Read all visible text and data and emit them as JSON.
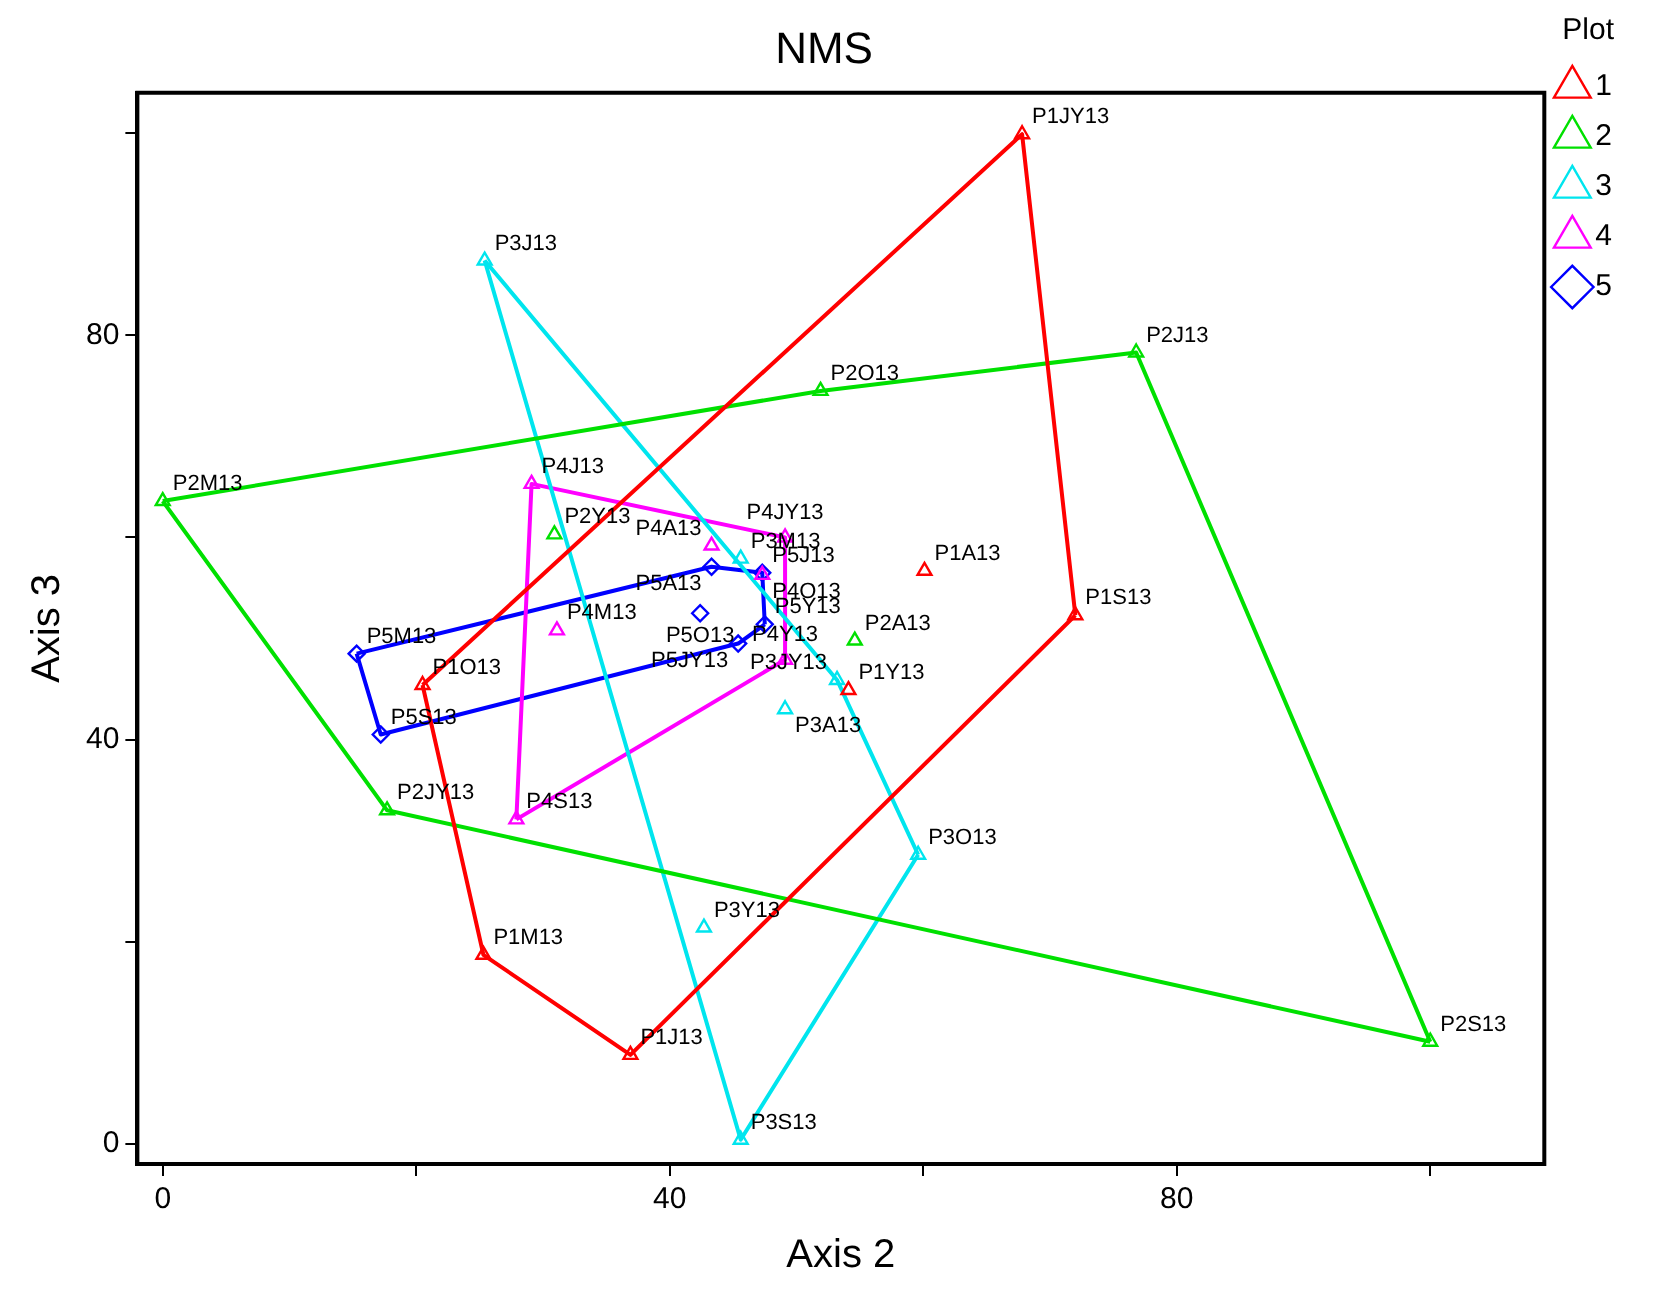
{
  "chart_data": {
    "type": "scatter",
    "title": "NMS",
    "xlabel": "Axis 2",
    "ylabel": "Axis 3",
    "legend_title": "Plot",
    "legend": "top right",
    "grid": false,
    "xlim": [
      -2,
      109
    ],
    "ylim": [
      -2,
      104
    ],
    "xticks": [
      0,
      {
        "value": 20,
        "label": null
      },
      40,
      {
        "value": 60,
        "label": null
      },
      80,
      {
        "value": 100,
        "label": null
      }
    ],
    "yticks": [
      0,
      {
        "value": 20,
        "label": null
      },
      40,
      {
        "value": 60,
        "label": null
      },
      80,
      {
        "value": 100,
        "label": null
      }
    ],
    "series": [
      {
        "name": "1",
        "type": "scatter",
        "color": "#ff0000",
        "marker": "triangle",
        "x": [
          67.8,
          72.0,
          60.1,
          54.1,
          20.5,
          25.3,
          36.9
        ],
        "values": [
          99.9,
          52.3,
          56.7,
          44.9,
          45.4,
          18.7,
          8.8
        ]
      },
      {
        "name": "2",
        "type": "scatter",
        "color": "#00e000",
        "marker": "triangle",
        "x": [
          0,
          51.9,
          76.8,
          100,
          17.7,
          30.9,
          54.6
        ],
        "values": [
          63.6,
          74.5,
          78.3,
          10.1,
          33.0,
          60.3,
          49.8
        ]
      },
      {
        "name": "3",
        "type": "scatter",
        "color": "#00e5ee",
        "marker": "triangle",
        "x": [
          25.4,
          45.6,
          59.6,
          42.7,
          49.1,
          45.6,
          53.2
        ],
        "values": [
          87.4,
          0.4,
          28.6,
          21.4,
          43.0,
          57.9,
          45.9
        ]
      },
      {
        "name": "4",
        "type": "scatter",
        "color": "#ff00ff",
        "marker": "triangle",
        "x": [
          29.1,
          49.1,
          43.3,
          47.3,
          31.1,
          27.9,
          49.1
        ],
        "values": [
          65.3,
          60.0,
          59.2,
          56.3,
          50.8,
          32.1,
          47.9
        ]
      },
      {
        "name": "5",
        "type": "scatter",
        "color": "#0000ff",
        "marker": "diamond",
        "x": [
          15.3,
          17.2,
          43.3,
          42.4,
          47.3,
          47.5,
          45.4
        ],
        "values": [
          48.5,
          40.5,
          57.1,
          52.5,
          56.5,
          51.4,
          49.5
        ]
      },
      {
        "type": "line",
        "color": "#ff0000",
        "x": [
          20.5,
          67.8,
          72.0
        ],
        "values": [
          45.4,
          99.9,
          52.3
        ]
      },
      {
        "type": "line",
        "color": "#ff0000",
        "x": [
          20.5,
          25.3,
          36.9,
          72.0
        ],
        "values": [
          45.4,
          18.7,
          8.8,
          52.3
        ]
      },
      {
        "type": "line",
        "color": "#00e000",
        "x": [
          0,
          51.9,
          76.8,
          100
        ],
        "values": [
          63.6,
          74.5,
          78.3,
          10.1
        ]
      },
      {
        "type": "line",
        "color": "#00e000",
        "x": [
          0,
          17.7,
          100
        ],
        "values": [
          63.6,
          33.0,
          10.1
        ]
      },
      {
        "type": "line",
        "color": "#00e5ee",
        "x": [
          25.4,
          53.2,
          59.6
        ],
        "values": [
          87.4,
          45.9,
          28.6
        ]
      },
      {
        "type": "line",
        "color": "#00e5ee",
        "x": [
          25.4,
          45.6,
          59.6
        ],
        "values": [
          87.4,
          0.4,
          28.6
        ]
      },
      {
        "type": "line",
        "color": "#ff00ff",
        "x": [
          27.9,
          29.1,
          49.1,
          49.1
        ],
        "values": [
          32.1,
          65.3,
          60.0,
          47.9
        ]
      },
      {
        "type": "line",
        "color": "#ff00ff",
        "x": [
          27.9,
          49.1
        ],
        "values": [
          32.1,
          47.9
        ]
      },
      {
        "type": "line",
        "color": "#0000ff",
        "x": [
          15.3,
          43.3,
          47.3,
          47.5
        ],
        "values": [
          48.5,
          57.1,
          56.5,
          51.4
        ]
      },
      {
        "type": "line",
        "color": "#0000ff",
        "x": [
          15.3,
          17.2,
          45.4,
          47.5
        ],
        "values": [
          48.5,
          40.5,
          49.5,
          51.4
        ]
      }
    ],
    "annotations": [
      {
        "text": "P1JY13",
        "x": 67.8,
        "y": 99.9
      },
      {
        "text": "P1S13",
        "x": 72.0,
        "y": 52.3
      },
      {
        "text": "P1A13",
        "x": 60.1,
        "y": 56.7
      },
      {
        "text": "P1Y13",
        "x": 54.1,
        "y": 44.9
      },
      {
        "text": "P1O13",
        "x": 20.5,
        "y": 45.4
      },
      {
        "text": "P1M13",
        "x": 25.3,
        "y": 18.7
      },
      {
        "text": "P1J13",
        "x": 36.9,
        "y": 8.8
      },
      {
        "text": "P2M13",
        "x": 0,
        "y": 63.6
      },
      {
        "text": "P2O13",
        "x": 51.9,
        "y": 74.5
      },
      {
        "text": "P2J13",
        "x": 76.8,
        "y": 78.3
      },
      {
        "text": "P2S13",
        "x": 100,
        "y": 10.1
      },
      {
        "text": "P2JY13",
        "x": 17.7,
        "y": 33.0
      },
      {
        "text": "P2Y13",
        "x": 30.9,
        "y": 60.3
      },
      {
        "text": "P2A13",
        "x": 54.6,
        "y": 49.8
      },
      {
        "text": "P3J13",
        "x": 25.4,
        "y": 87.4
      },
      {
        "text": "P3S13",
        "x": 45.6,
        "y": 0.4
      },
      {
        "text": "P3O13",
        "x": 59.6,
        "y": 28.6
      },
      {
        "text": "P3Y13",
        "x": 42.7,
        "y": 21.4
      },
      {
        "text": "P3A13",
        "x": 49.1,
        "y": 43.0
      },
      {
        "text": "P3M13",
        "x": 45.6,
        "y": 57.9
      },
      {
        "text": "P3JY13",
        "x": 53.2,
        "y": 45.9
      },
      {
        "text": "P4J13",
        "x": 29.1,
        "y": 65.3
      },
      {
        "text": "P4JY13",
        "x": 49.1,
        "y": 60.0
      },
      {
        "text": "P4A13",
        "x": 43.3,
        "y": 59.2
      },
      {
        "text": "P4O13",
        "x": 47.3,
        "y": 56.3
      },
      {
        "text": "P4M13",
        "x": 31.1,
        "y": 50.8
      },
      {
        "text": "P4S13",
        "x": 27.9,
        "y": 32.1
      },
      {
        "text": "P4Y13",
        "x": 49.1,
        "y": 47.9
      },
      {
        "text": "P5M13",
        "x": 15.3,
        "y": 48.5
      },
      {
        "text": "P5S13",
        "x": 17.2,
        "y": 40.5
      },
      {
        "text": "P5A13",
        "x": 43.3,
        "y": 57.1
      },
      {
        "text": "P5O13",
        "x": 42.4,
        "y": 52.5
      },
      {
        "text": "P5J13",
        "x": 47.3,
        "y": 56.5
      },
      {
        "text": "P5Y13",
        "x": 47.5,
        "y": 51.4
      },
      {
        "text": "P5JY13",
        "x": 45.4,
        "y": 49.5
      }
    ]
  }
}
